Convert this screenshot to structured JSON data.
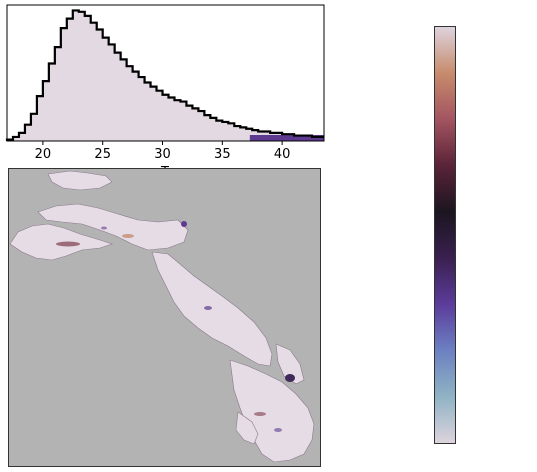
{
  "chart_data": [
    {
      "type": "histogram",
      "xlabel": "T",
      "xlim": [
        17,
        43.5
      ],
      "ylim": [
        0,
        100
      ],
      "x_ticks": [
        "20",
        "25",
        "30",
        "35",
        "40"
      ],
      "fill_color": "#e2d9e2",
      "highlight_color": "#5d3a8f",
      "highlight_range": [
        37.3,
        43.5
      ],
      "bins": {
        "x": [
          17.0,
          17.5,
          18.0,
          18.5,
          19.0,
          19.5,
          20.0,
          20.5,
          21.0,
          21.5,
          22.0,
          22.5,
          23.0,
          23.5,
          24.0,
          24.5,
          25.0,
          25.5,
          26.0,
          26.5,
          27.0,
          27.5,
          28.0,
          28.5,
          29.0,
          29.5,
          30.0,
          30.5,
          31.0,
          31.5,
          32.0,
          32.5,
          33.0,
          33.5,
          34.0,
          34.5,
          35.0,
          35.5,
          36.0,
          36.5,
          37.0,
          37.5,
          38.0,
          38.5,
          39.0,
          39.5,
          40.0,
          40.5,
          41.0,
          41.5,
          42.0,
          42.5,
          43.0
        ],
        "counts": [
          1,
          3,
          6,
          12,
          20,
          33,
          44,
          57,
          69,
          83,
          90,
          96,
          95,
          92,
          87,
          82,
          76,
          71,
          65,
          60,
          55,
          51,
          47,
          43,
          40,
          37,
          34,
          32,
          30,
          29,
          26,
          24,
          22,
          19,
          17,
          15,
          14,
          13,
          11,
          10,
          9,
          8,
          7,
          7,
          6,
          6,
          5,
          5,
          4,
          4,
          4,
          3,
          3
        ]
      }
    },
    {
      "type": "heatmap",
      "background_color": "#b3b3b3",
      "region_color": "#e6dce6",
      "accent_colors": [
        "#5d3a8f",
        "#8a5060",
        "#c08060",
        "#3f2a5a"
      ]
    },
    {
      "type": "colorbar",
      "orientation": "vertical",
      "colors_bottom_to_top": [
        "#ddd3dd",
        "#8fb3c4",
        "#6c81c2",
        "#5b3c9a",
        "#3a2050",
        "#1b1520",
        "#5a2338",
        "#a35460",
        "#c78b6c",
        "#ddd3dd"
      ]
    }
  ]
}
